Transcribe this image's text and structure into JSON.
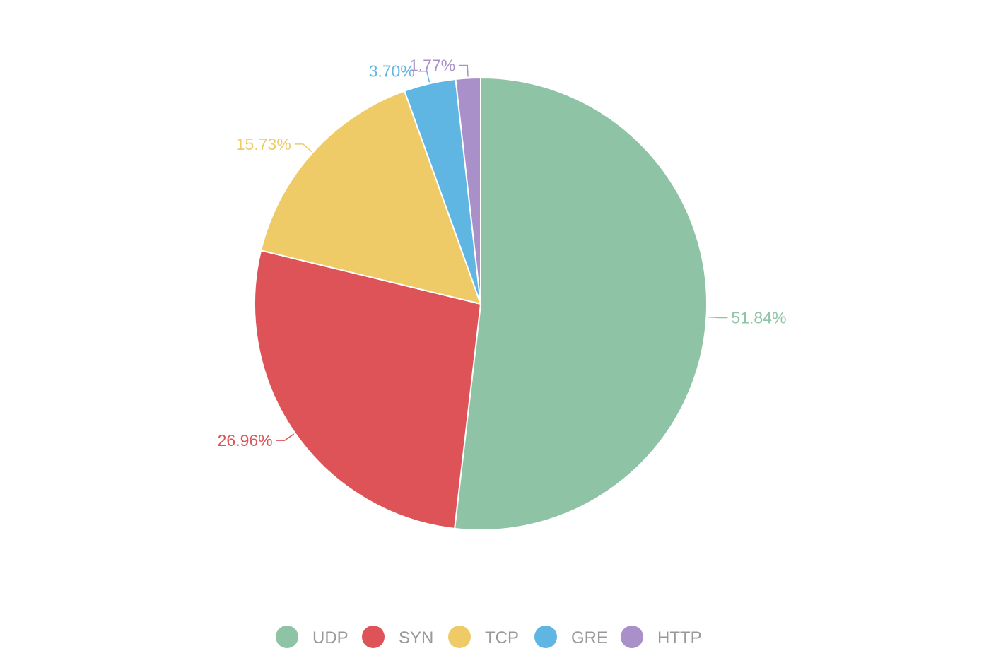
{
  "chart_data": {
    "type": "pie",
    "categories": [
      "UDP",
      "SYN",
      "TCP",
      "GRE",
      "HTTP"
    ],
    "values": [
      51.84,
      26.96,
      15.73,
      3.7,
      1.77
    ],
    "labels": [
      "51.84%",
      "26.96%",
      "15.73%",
      "3.70%",
      "1.77%"
    ],
    "colors": [
      "#8fc3a6",
      "#de5357",
      "#efcb68",
      "#5fb6e3",
      "#a990c9"
    ],
    "legend": {
      "position": "bottom",
      "items": [
        "UDP",
        "SYN",
        "TCP",
        "GRE",
        "HTTP"
      ]
    },
    "title": "",
    "unit": "%"
  }
}
